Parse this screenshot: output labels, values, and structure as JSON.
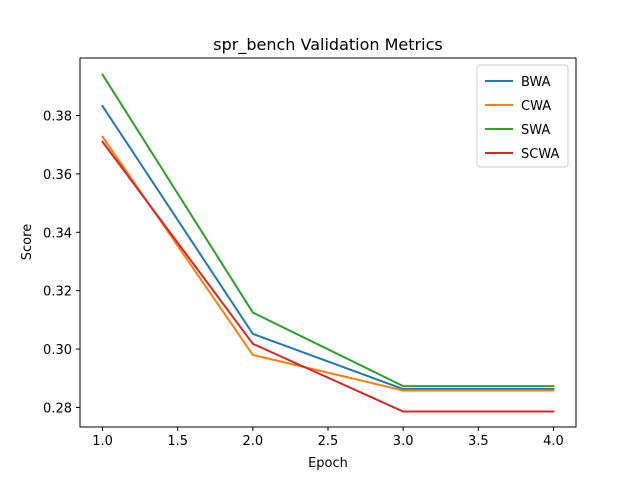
{
  "chart_data": {
    "type": "line",
    "title": "spr_bench Validation Metrics",
    "xlabel": "Epoch",
    "ylabel": "Score",
    "x": [
      1.0,
      2.0,
      3.0,
      4.0
    ],
    "xlim": [
      0.85,
      4.15
    ],
    "ylim": [
      0.2733,
      0.3997
    ],
    "xticks": [
      1.0,
      1.5,
      2.0,
      2.5,
      3.0,
      3.5,
      4.0
    ],
    "xtick_labels": [
      "1.0",
      "1.5",
      "2.0",
      "2.5",
      "3.0",
      "3.5",
      "4.0"
    ],
    "yticks": [
      0.28,
      0.3,
      0.32,
      0.34,
      0.36,
      0.38
    ],
    "ytick_labels": [
      "0.28",
      "0.30",
      "0.32",
      "0.34",
      "0.36",
      "0.38"
    ],
    "grid": false,
    "legend_position": "top-right",
    "series": [
      {
        "name": "BWA",
        "color": "#1f77b4",
        "values": [
          0.3832,
          0.3052,
          0.2863,
          0.2863
        ]
      },
      {
        "name": "CWA",
        "color": "#ff7f0e",
        "values": [
          0.3727,
          0.298,
          0.2858,
          0.2858
        ]
      },
      {
        "name": "SWA",
        "color": "#2ca02c",
        "values": [
          0.394,
          0.3125,
          0.2873,
          0.2873
        ]
      },
      {
        "name": "SCWA",
        "color": "#d62728",
        "values": [
          0.371,
          0.3018,
          0.2786,
          0.2786
        ]
      }
    ]
  }
}
